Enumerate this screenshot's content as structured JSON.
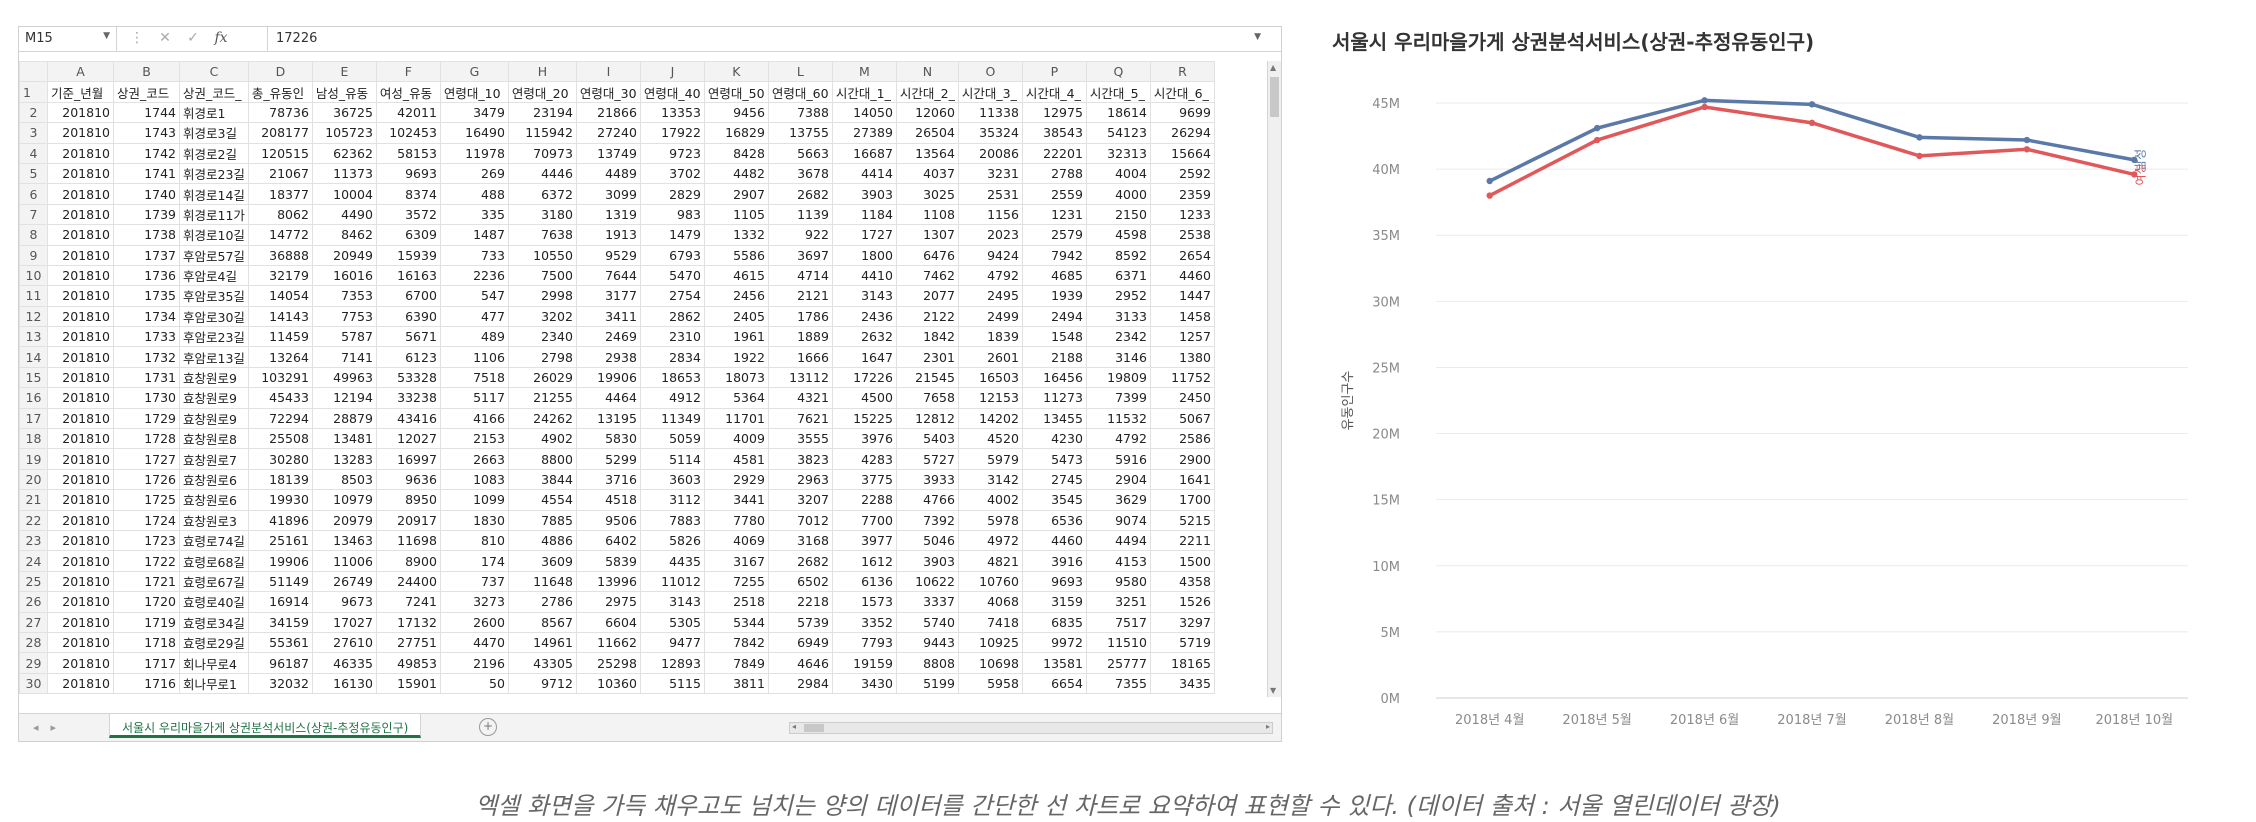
{
  "excel": {
    "name_box": "M15",
    "formula_value": "17226",
    "column_letters": [
      "A",
      "B",
      "C",
      "D",
      "E",
      "F",
      "G",
      "H",
      "I",
      "J",
      "K",
      "L",
      "M",
      "N",
      "O",
      "P",
      "Q",
      "R"
    ],
    "headers": [
      "기준_년월",
      "상권_코드",
      "상권_코드_",
      "총_유동인",
      "남성_유동",
      "여성_유동",
      "연령대_10",
      "연령대_20",
      "연령대_30",
      "연령대_40",
      "연령대_50",
      "연령대_60",
      "시간대_1_",
      "시간대_2_",
      "시간대_3_",
      "시간대_4_",
      "시간대_5_",
      "시간대_6_"
    ],
    "rows": [
      [
        "201810",
        "1744",
        "휘경로1",
        "78736",
        "36725",
        "42011",
        "3479",
        "23194",
        "21866",
        "13353",
        "9456",
        "7388",
        "14050",
        "12060",
        "11338",
        "12975",
        "18614",
        "9699"
      ],
      [
        "201810",
        "1743",
        "휘경로3길",
        "208177",
        "105723",
        "102453",
        "16490",
        "115942",
        "27240",
        "17922",
        "16829",
        "13755",
        "27389",
        "26504",
        "35324",
        "38543",
        "54123",
        "26294"
      ],
      [
        "201810",
        "1742",
        "휘경로2길",
        "120515",
        "62362",
        "58153",
        "11978",
        "70973",
        "13749",
        "9723",
        "8428",
        "5663",
        "16687",
        "13564",
        "20086",
        "22201",
        "32313",
        "15664"
      ],
      [
        "201810",
        "1741",
        "휘경로23길",
        "21067",
        "11373",
        "9693",
        "269",
        "4446",
        "4489",
        "3702",
        "4482",
        "3678",
        "4414",
        "4037",
        "3231",
        "2788",
        "4004",
        "2592"
      ],
      [
        "201810",
        "1740",
        "휘경로14길",
        "18377",
        "10004",
        "8374",
        "488",
        "6372",
        "3099",
        "2829",
        "2907",
        "2682",
        "3903",
        "3025",
        "2531",
        "2559",
        "4000",
        "2359"
      ],
      [
        "201810",
        "1739",
        "휘경로11가",
        "8062",
        "4490",
        "3572",
        "335",
        "3180",
        "1319",
        "983",
        "1105",
        "1139",
        "1184",
        "1108",
        "1156",
        "1231",
        "2150",
        "1233"
      ],
      [
        "201810",
        "1738",
        "휘경로10길",
        "14772",
        "8462",
        "6309",
        "1487",
        "7638",
        "1913",
        "1479",
        "1332",
        "922",
        "1727",
        "1307",
        "2023",
        "2579",
        "4598",
        "2538"
      ],
      [
        "201810",
        "1737",
        "후암로57길",
        "36888",
        "20949",
        "15939",
        "733",
        "10550",
        "9529",
        "6793",
        "5586",
        "3697",
        "1800",
        "6476",
        "9424",
        "7942",
        "8592",
        "2654"
      ],
      [
        "201810",
        "1736",
        "후암로4길",
        "32179",
        "16016",
        "16163",
        "2236",
        "7500",
        "7644",
        "5470",
        "4615",
        "4714",
        "4410",
        "7462",
        "4792",
        "4685",
        "6371",
        "4460"
      ],
      [
        "201810",
        "1735",
        "후암로35길",
        "14054",
        "7353",
        "6700",
        "547",
        "2998",
        "3177",
        "2754",
        "2456",
        "2121",
        "3143",
        "2077",
        "2495",
        "1939",
        "2952",
        "1447"
      ],
      [
        "201810",
        "1734",
        "후암로30길",
        "14143",
        "7753",
        "6390",
        "477",
        "3202",
        "3411",
        "2862",
        "2405",
        "1786",
        "2436",
        "2122",
        "2499",
        "2494",
        "3133",
        "1458"
      ],
      [
        "201810",
        "1733",
        "후암로23길",
        "11459",
        "5787",
        "5671",
        "489",
        "2340",
        "2469",
        "2310",
        "1961",
        "1889",
        "2632",
        "1842",
        "1839",
        "1548",
        "2342",
        "1257"
      ],
      [
        "201810",
        "1732",
        "후암로13길",
        "13264",
        "7141",
        "6123",
        "1106",
        "2798",
        "2938",
        "2834",
        "1922",
        "1666",
        "1647",
        "2301",
        "2601",
        "2188",
        "3146",
        "1380"
      ],
      [
        "201810",
        "1731",
        "효창원로9",
        "103291",
        "49963",
        "53328",
        "7518",
        "26029",
        "19906",
        "18653",
        "18073",
        "13112",
        "17226",
        "21545",
        "16503",
        "16456",
        "19809",
        "11752"
      ],
      [
        "201810",
        "1730",
        "효창원로9",
        "45433",
        "12194",
        "33238",
        "5117",
        "21255",
        "4464",
        "4912",
        "5364",
        "4321",
        "4500",
        "7658",
        "12153",
        "11273",
        "7399",
        "2450"
      ],
      [
        "201810",
        "1729",
        "효창원로9",
        "72294",
        "28879",
        "43416",
        "4166",
        "24262",
        "13195",
        "11349",
        "11701",
        "7621",
        "15225",
        "12812",
        "14202",
        "13455",
        "11532",
        "5067"
      ],
      [
        "201810",
        "1728",
        "효창원로8",
        "25508",
        "13481",
        "12027",
        "2153",
        "4902",
        "5830",
        "5059",
        "4009",
        "3555",
        "3976",
        "5403",
        "4520",
        "4230",
        "4792",
        "2586"
      ],
      [
        "201810",
        "1727",
        "효창원로7",
        "30280",
        "13283",
        "16997",
        "2663",
        "8800",
        "5299",
        "5114",
        "4581",
        "3823",
        "4283",
        "5727",
        "5979",
        "5473",
        "5916",
        "2900"
      ],
      [
        "201810",
        "1726",
        "효창원로6",
        "18139",
        "8503",
        "9636",
        "1083",
        "3844",
        "3716",
        "3603",
        "2929",
        "2963",
        "3775",
        "3933",
        "3142",
        "2745",
        "2904",
        "1641"
      ],
      [
        "201810",
        "1725",
        "효창원로6",
        "19930",
        "10979",
        "8950",
        "1099",
        "4554",
        "4518",
        "3112",
        "3441",
        "3207",
        "2288",
        "4766",
        "4002",
        "3545",
        "3629",
        "1700"
      ],
      [
        "201810",
        "1724",
        "효창원로3",
        "41896",
        "20979",
        "20917",
        "1830",
        "7885",
        "9506",
        "7883",
        "7780",
        "7012",
        "7700",
        "7392",
        "5978",
        "6536",
        "9074",
        "5215"
      ],
      [
        "201810",
        "1723",
        "효령로74길",
        "25161",
        "13463",
        "11698",
        "810",
        "4886",
        "6402",
        "5826",
        "4069",
        "3168",
        "3977",
        "5046",
        "4972",
        "4460",
        "4494",
        "2211"
      ],
      [
        "201810",
        "1722",
        "효령로68길",
        "19906",
        "11006",
        "8900",
        "174",
        "3609",
        "5839",
        "4435",
        "3167",
        "2682",
        "1612",
        "3903",
        "4821",
        "3916",
        "4153",
        "1500"
      ],
      [
        "201810",
        "1721",
        "효령로67길",
        "51149",
        "26749",
        "24400",
        "737",
        "11648",
        "13996",
        "11012",
        "7255",
        "6502",
        "6136",
        "10622",
        "10760",
        "9693",
        "9580",
        "4358"
      ],
      [
        "201810",
        "1720",
        "효령로40길",
        "16914",
        "9673",
        "7241",
        "3273",
        "2786",
        "2975",
        "3143",
        "2518",
        "2218",
        "1573",
        "3337",
        "4068",
        "3159",
        "3251",
        "1526"
      ],
      [
        "201810",
        "1719",
        "효령로34길",
        "34159",
        "17027",
        "17132",
        "2600",
        "8567",
        "6604",
        "5305",
        "5344",
        "5739",
        "3352",
        "5740",
        "7418",
        "6835",
        "7517",
        "3297"
      ],
      [
        "201810",
        "1718",
        "효령로29길",
        "55361",
        "27610",
        "27751",
        "4470",
        "14961",
        "11662",
        "9477",
        "7842",
        "6949",
        "7793",
        "9443",
        "10925",
        "9972",
        "11510",
        "5719"
      ],
      [
        "201810",
        "1717",
        "회나무로4",
        "96187",
        "46335",
        "49853",
        "2196",
        "43305",
        "25298",
        "12893",
        "7849",
        "4646",
        "19159",
        "8808",
        "10698",
        "13581",
        "25777",
        "18165"
      ],
      [
        "201810",
        "1716",
        "회나무로1",
        "32032",
        "16130",
        "15901",
        "50",
        "9712",
        "10360",
        "5115",
        "3811",
        "2984",
        "3430",
        "5199",
        "5958",
        "6654",
        "7355",
        "3435"
      ]
    ],
    "sheet_tab": "서울시 우리마을가게 상권분석서비스(상권-추정유동인구)",
    "add_sheet_icon": "plus-circle-icon"
  },
  "chart": {
    "title": "서울시 우리마을가게 상권분석서비스(상권-추정유동인구)",
    "colors": {
      "male": "#5a78a8",
      "female": "#e0585a",
      "grid": "#ebebeb",
      "axis_text": "#8a8a8a"
    }
  },
  "chart_data": {
    "type": "line",
    "title": "서울시 우리마을가게 상권분석서비스(상권-추정유동인구)",
    "xlabel": "",
    "ylabel": "유동인구수",
    "categories": [
      "2018년 4월",
      "2018년 5월",
      "2018년 6월",
      "2018년 7월",
      "2018년 8월",
      "2018년 9월",
      "2018년 10월"
    ],
    "yticks": [
      "0M",
      "5M",
      "10M",
      "15M",
      "20M",
      "25M",
      "30M",
      "35M",
      "40M",
      "45M"
    ],
    "ylim": [
      0,
      45
    ],
    "grid": true,
    "legend_placement": "end-of-line labels at right",
    "series": [
      {
        "name": "남성",
        "values": [
          39.1,
          43.1,
          45.2,
          44.9,
          42.4,
          42.2,
          40.7
        ]
      },
      {
        "name": "여성",
        "values": [
          38.0,
          42.2,
          44.7,
          43.5,
          41.0,
          41.5,
          39.6
        ]
      }
    ]
  },
  "caption": "엑셀 화면을 가득 채우고도 넘치는 양의 데이터를 간단한 선 차트로 요약하여 표현할 수 있다. (데이터 출처 : 서울 열린데이터 광장)"
}
